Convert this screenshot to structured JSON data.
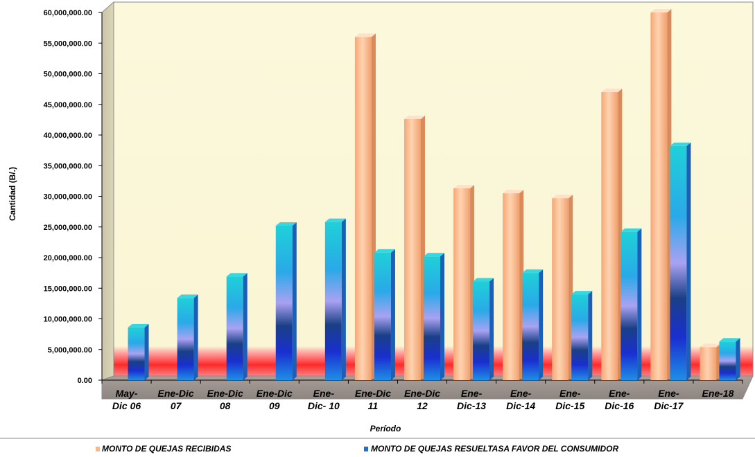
{
  "chart_data": {
    "type": "bar",
    "title": "",
    "xlabel": "Período",
    "ylabel": "Cantidad  (B/.)",
    "ylim": [
      0,
      60000000
    ],
    "ytick_step": 5000000,
    "ytick_labels": [
      "0.00",
      "5,000,000.00",
      "10,000,000.00",
      "15,000,000.00",
      "20,000,000.00",
      "25,000,000.00",
      "30,000,000.00",
      "35,000,000.00",
      "40,000,000.00",
      "45,000,000.00",
      "50,000,000.00",
      "55,000,000.00",
      "60,000,000.00"
    ],
    "categories": [
      [
        "May-",
        "Dic 06"
      ],
      [
        "Ene-Dic",
        "07"
      ],
      [
        "Ene-Dic",
        "08"
      ],
      [
        "Ene-Dic",
        "09"
      ],
      [
        "Ene-",
        "Dic- 10"
      ],
      [
        "Ene-Dic",
        "11"
      ],
      [
        "Ene-Dic",
        "12"
      ],
      [
        "Ene-",
        "Dic-13"
      ],
      [
        "Ene-",
        "Dic-14"
      ],
      [
        "Ene-",
        "Dic-15"
      ],
      [
        "Ene-",
        "Dic-16"
      ],
      [
        "Ene-",
        "Dic-17"
      ],
      [
        "Ene-18"
      ]
    ],
    "series": [
      {
        "name": "MONTO DE QUEJAS RECIBIDAS",
        "color": "#f7b98a",
        "values": [
          0,
          0,
          0,
          0,
          0,
          56000000,
          42600000,
          31300000,
          30500000,
          29700000,
          47000000,
          60000000,
          5400000
        ]
      },
      {
        "name": "MONTO DE QUEJAS RESUELTASA FAVOR DEL CONSUMIDOR",
        "color": "#1f6fd6",
        "values": [
          8600000,
          13400000,
          16900000,
          25200000,
          25800000,
          20800000,
          20200000,
          16100000,
          17500000,
          14000000,
          24200000,
          38200000,
          6300000
        ]
      }
    ],
    "grid": false,
    "legend_position": "bottom"
  }
}
